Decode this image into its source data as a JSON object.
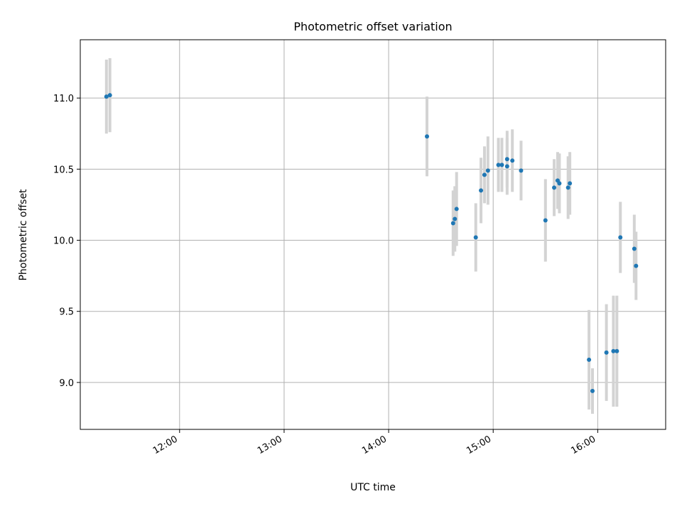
{
  "chart_data": {
    "type": "scatter",
    "title": "Photometric offset variation",
    "xlabel": "UTC time",
    "ylabel": "Photometric offset",
    "grid": true,
    "x_ticks": [
      "12:00",
      "13:00",
      "14:00",
      "15:00",
      "16:00"
    ],
    "y_ticks": [
      "9.0",
      "9.5",
      "10.0",
      "10.5",
      "11.0"
    ],
    "xlim": [
      "11:03",
      "16:39"
    ],
    "ylim": [
      8.67,
      11.41
    ],
    "colors": {
      "point": "#1f77b4",
      "errorbar": "#d3d3d3",
      "grid": "#b0b0b0"
    },
    "points": [
      {
        "x": "11:18",
        "y": 11.01,
        "err": 0.26
      },
      {
        "x": "11:20",
        "y": 11.02,
        "err": 0.26
      },
      {
        "x": "14:22",
        "y": 10.73,
        "err": 0.28
      },
      {
        "x": "14:37",
        "y": 10.12,
        "err": 0.23
      },
      {
        "x": "14:38",
        "y": 10.15,
        "err": 0.23
      },
      {
        "x": "14:39",
        "y": 10.22,
        "err": 0.26
      },
      {
        "x": "14:50",
        "y": 10.02,
        "err": 0.24
      },
      {
        "x": "14:53",
        "y": 10.35,
        "err": 0.23
      },
      {
        "x": "14:55",
        "y": 10.46,
        "err": 0.2
      },
      {
        "x": "14:57",
        "y": 10.49,
        "err": 0.24
      },
      {
        "x": "15:03",
        "y": 10.53,
        "err": 0.19
      },
      {
        "x": "15:05",
        "y": 10.53,
        "err": 0.19
      },
      {
        "x": "15:08",
        "y": 10.57,
        "err": 0.2
      },
      {
        "x": "15:08",
        "y": 10.52,
        "err": 0.2
      },
      {
        "x": "15:11",
        "y": 10.56,
        "err": 0.22
      },
      {
        "x": "15:16",
        "y": 10.49,
        "err": 0.21
      },
      {
        "x": "15:30",
        "y": 10.14,
        "err": 0.29
      },
      {
        "x": "15:35",
        "y": 10.37,
        "err": 0.2
      },
      {
        "x": "15:37",
        "y": 10.42,
        "err": 0.2
      },
      {
        "x": "15:38",
        "y": 10.4,
        "err": 0.21
      },
      {
        "x": "15:43",
        "y": 10.37,
        "err": 0.22
      },
      {
        "x": "15:44",
        "y": 10.4,
        "err": 0.22
      },
      {
        "x": "15:55",
        "y": 9.16,
        "err": 0.35
      },
      {
        "x": "15:57",
        "y": 8.94,
        "err": 0.16
      },
      {
        "x": "16:05",
        "y": 9.21,
        "err": 0.34
      },
      {
        "x": "16:09",
        "y": 9.22,
        "err": 0.39
      },
      {
        "x": "16:11",
        "y": 9.22,
        "err": 0.39
      },
      {
        "x": "16:13",
        "y": 10.02,
        "err": 0.25
      },
      {
        "x": "16:21",
        "y": 9.94,
        "err": 0.24
      },
      {
        "x": "16:22",
        "y": 9.82,
        "err": 0.24
      }
    ]
  }
}
